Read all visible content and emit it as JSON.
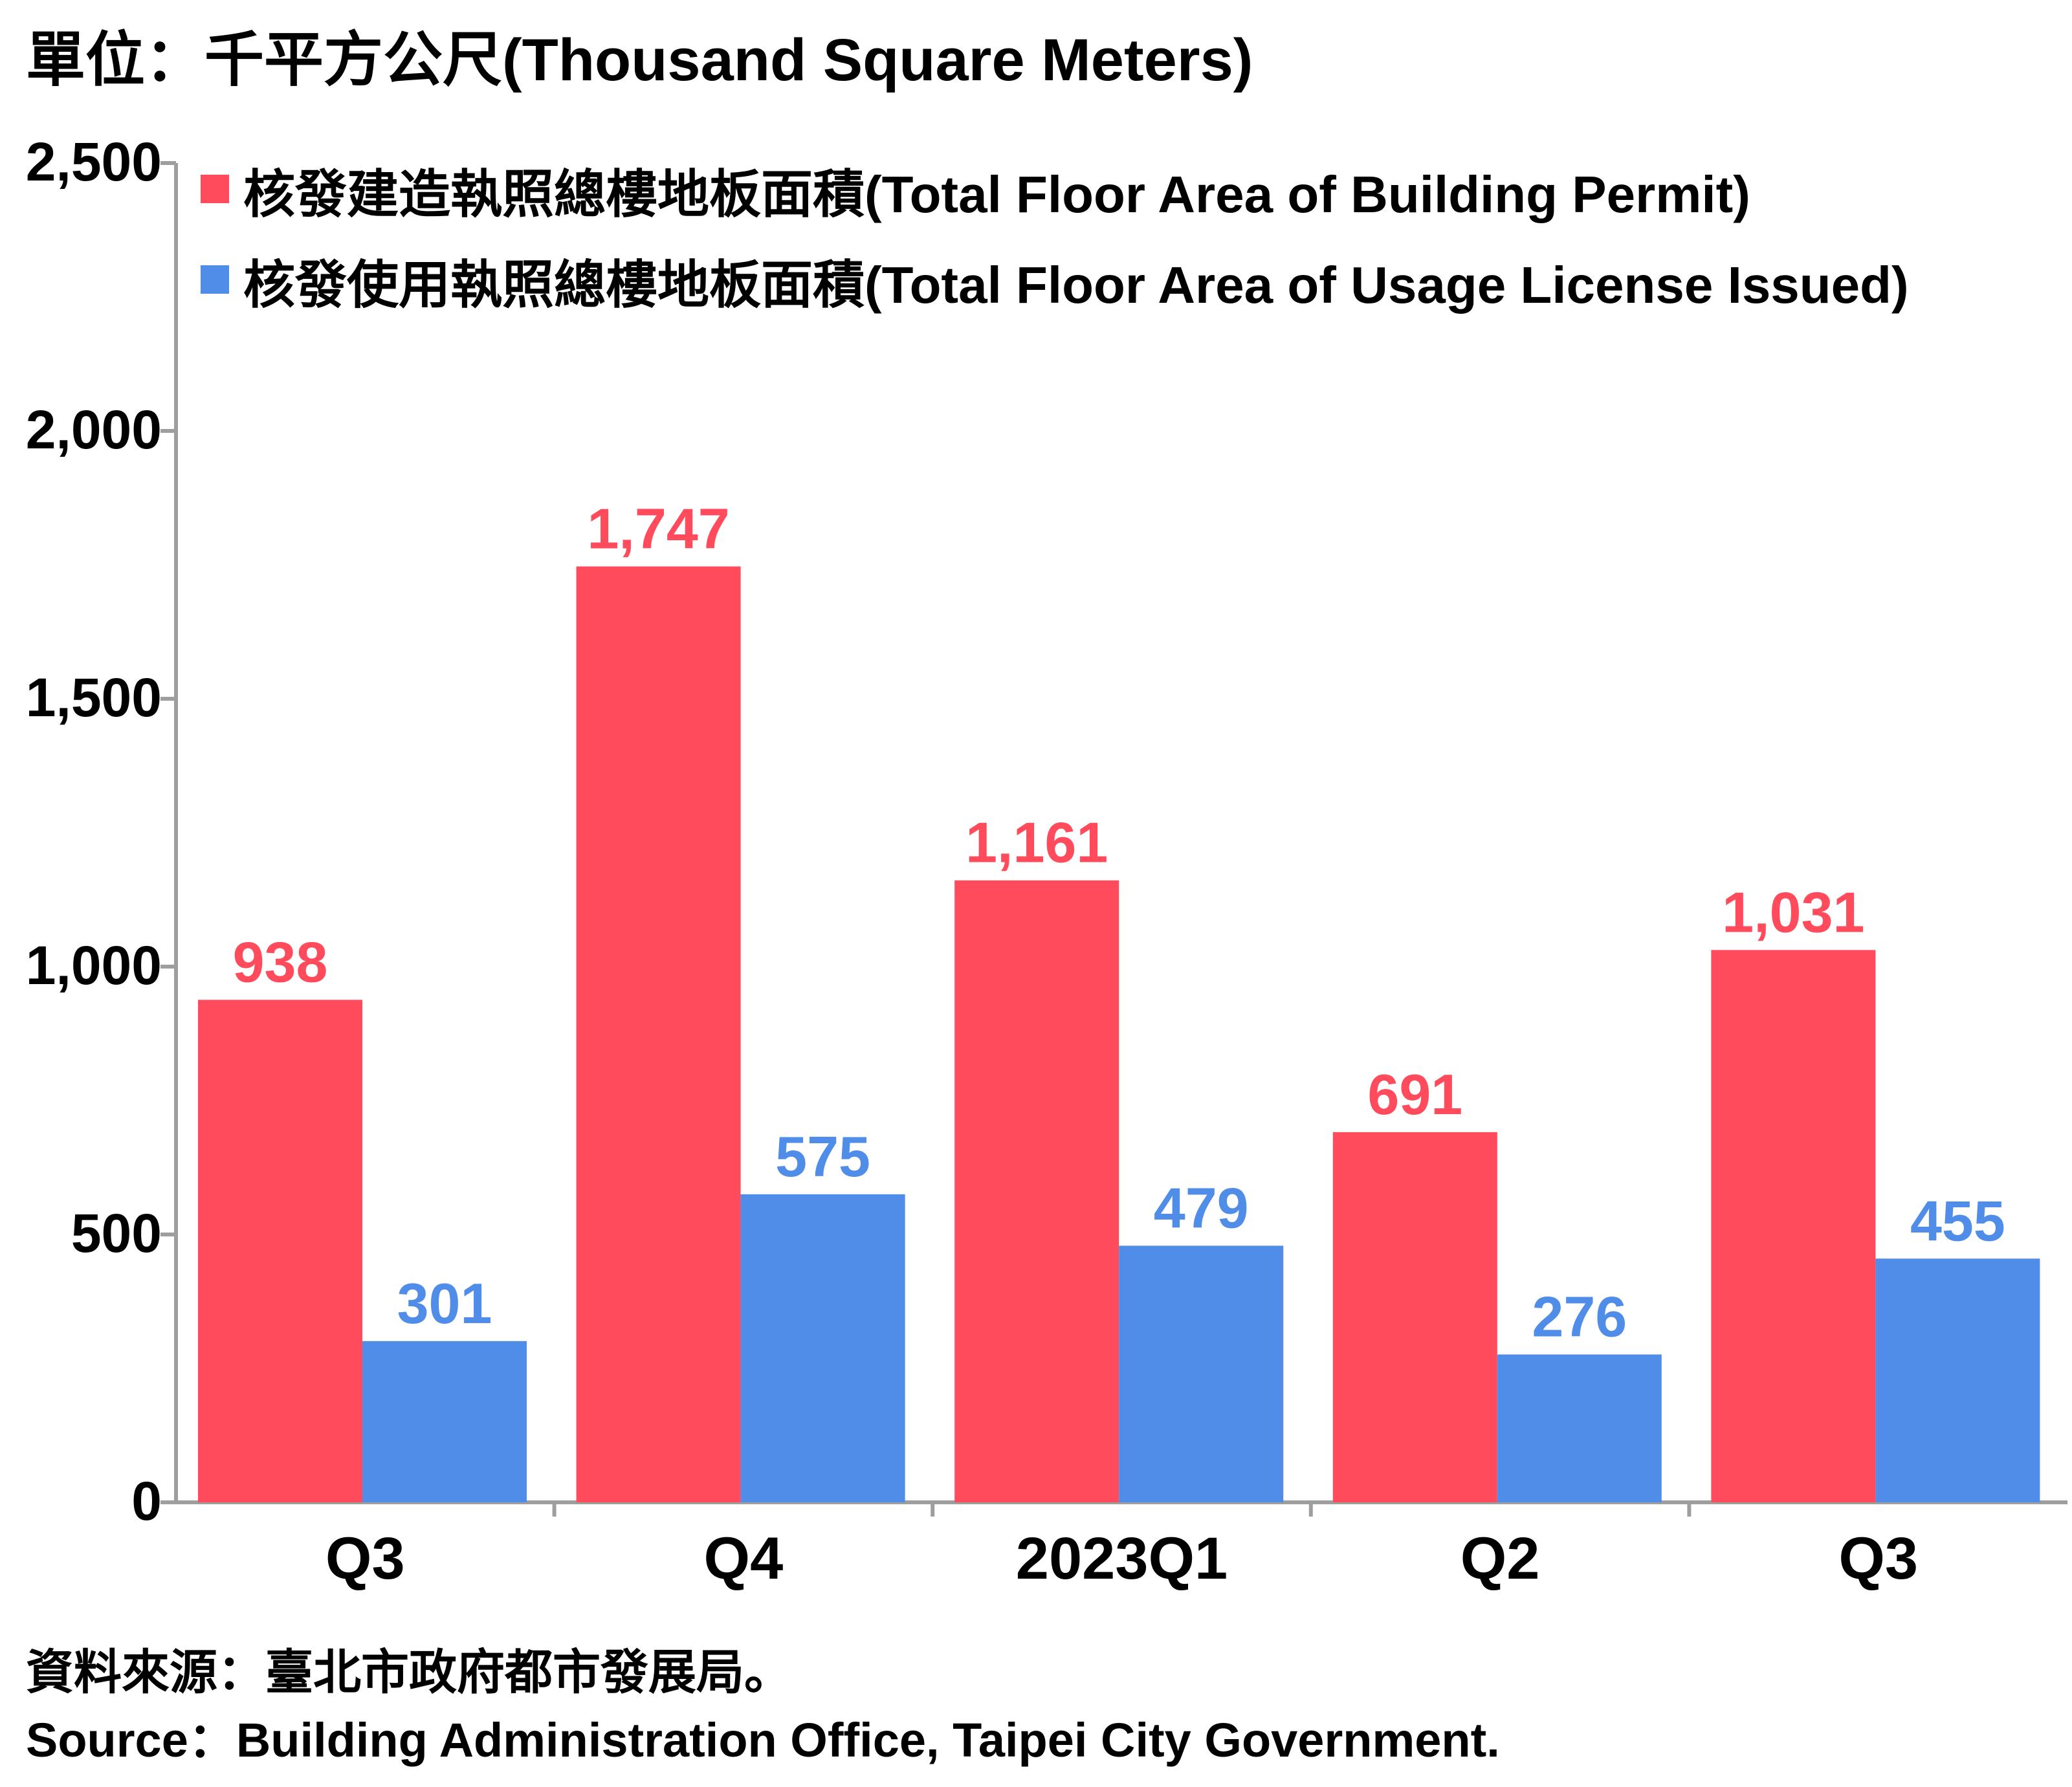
{
  "unit_label": "單位：千平方公尺(Thousand Square Meters)",
  "source_zh": "資料來源：臺北市政府都市發展局。",
  "source_en": "Source：Building Administration Office, Taipei City Government.",
  "colors": {
    "permit": "#ff4b5c",
    "usage": "#4f8de8",
    "axis": "#9e9e9e",
    "text": "#000000"
  },
  "chart_data": {
    "type": "bar",
    "categories": [
      "Q3",
      "Q4",
      "2023Q1",
      "Q2",
      "Q3"
    ],
    "series": [
      {
        "name": "核發建造執照總樓地板面積(Total Floor Area of Building Permit)",
        "values": [
          938,
          1747,
          1161,
          691,
          1031
        ],
        "color": "#ff4b5c"
      },
      {
        "name": "核發使用執照總樓地板面積(Total Floor Area of Usage License Issued)",
        "values": [
          301,
          575,
          479,
          276,
          455
        ],
        "color": "#4f8de8"
      }
    ],
    "yticks": [
      "0",
      "500",
      "1,000",
      "1,500",
      "2,000",
      "2,500"
    ],
    "ylim": [
      0,
      2500
    ],
    "grid": false,
    "legend_position": "top-left"
  }
}
